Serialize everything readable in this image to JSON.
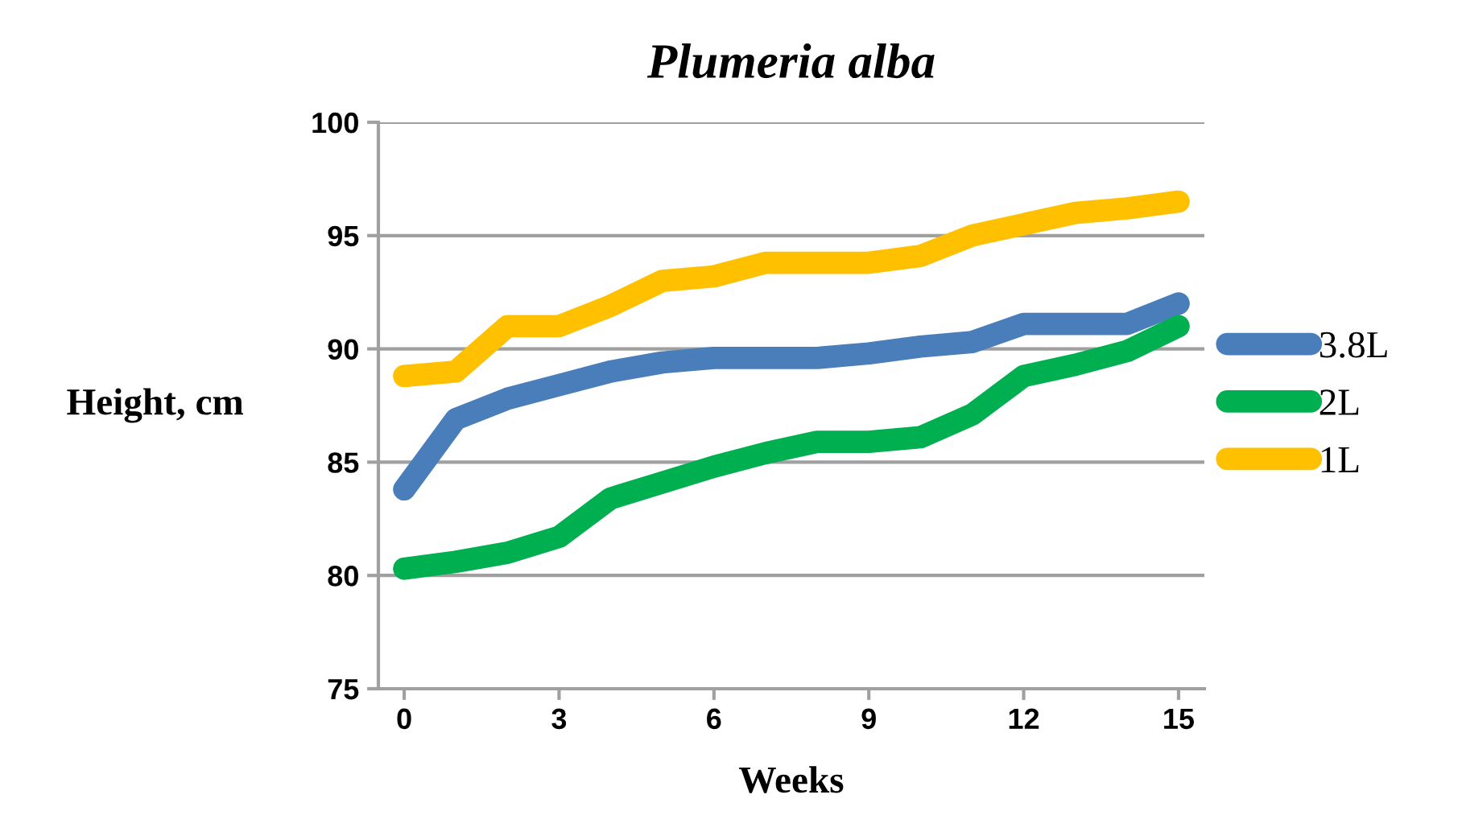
{
  "chart_data": {
    "type": "line",
    "title": "Plumeria alba",
    "xlabel": "Weeks",
    "ylabel": "Height, cm",
    "x": [
      0,
      1,
      2,
      3,
      4,
      5,
      6,
      7,
      8,
      9,
      10,
      11,
      12,
      13,
      14,
      15
    ],
    "series": [
      {
        "name": "3.8L",
        "color": "#4a7ebb",
        "values": [
          83.8,
          86.9,
          87.8,
          88.4,
          89.0,
          89.4,
          89.6,
          89.6,
          89.6,
          89.8,
          90.1,
          90.3,
          91.1,
          91.1,
          91.1,
          92.0
        ]
      },
      {
        "name": "2L",
        "color": "#00b050",
        "values": [
          80.3,
          80.6,
          81.0,
          81.7,
          83.4,
          84.1,
          84.8,
          85.4,
          85.9,
          85.9,
          86.1,
          87.1,
          88.8,
          89.3,
          89.9,
          91.0
        ]
      },
      {
        "name": "1L",
        "color": "#ffc000",
        "values": [
          88.8,
          89.0,
          91.0,
          91.0,
          91.9,
          93.0,
          93.2,
          93.8,
          93.8,
          93.8,
          94.1,
          95.0,
          95.5,
          96.0,
          96.2,
          96.5
        ]
      }
    ],
    "xlim": [
      -0.5,
      15.5
    ],
    "xticks": [
      0,
      3,
      6,
      9,
      12,
      15
    ],
    "ylim": [
      75,
      100
    ],
    "yticks": [
      75,
      80,
      85,
      90,
      95,
      100
    ],
    "grid": "y",
    "legend": "right",
    "line_style": "solid"
  }
}
